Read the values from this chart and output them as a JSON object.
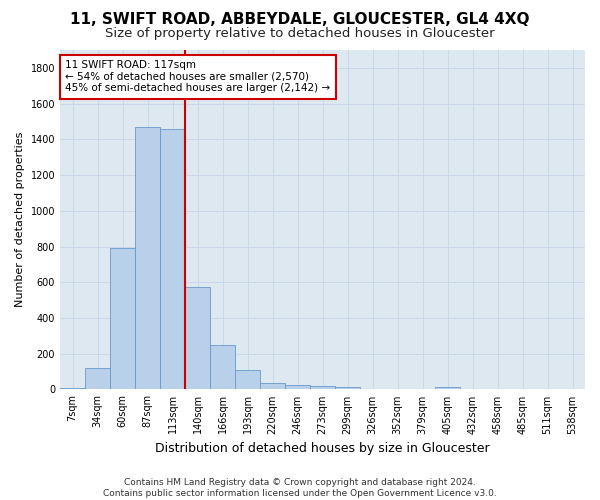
{
  "title": "11, SWIFT ROAD, ABBEYDALE, GLOUCESTER, GL4 4XQ",
  "subtitle": "Size of property relative to detached houses in Gloucester",
  "xlabel": "Distribution of detached houses by size in Gloucester",
  "ylabel": "Number of detached properties",
  "footer_line1": "Contains HM Land Registry data © Crown copyright and database right 2024.",
  "footer_line2": "Contains public sector information licensed under the Open Government Licence v3.0.",
  "bar_labels": [
    "7sqm",
    "34sqm",
    "60sqm",
    "87sqm",
    "113sqm",
    "140sqm",
    "166sqm",
    "193sqm",
    "220sqm",
    "246sqm",
    "273sqm",
    "299sqm",
    "326sqm",
    "352sqm",
    "379sqm",
    "405sqm",
    "432sqm",
    "458sqm",
    "485sqm",
    "511sqm",
    "538sqm"
  ],
  "bar_values": [
    8,
    120,
    790,
    1470,
    1460,
    575,
    250,
    110,
    35,
    25,
    20,
    15,
    3,
    0,
    0,
    12,
    0,
    0,
    0,
    0,
    0
  ],
  "bar_color": "#b8d0ea",
  "bar_edgecolor": "#6699cc",
  "vline_color": "#cc0000",
  "vline_pos": 4.5,
  "annotation_text": "11 SWIFT ROAD: 117sqm\n← 54% of detached houses are smaller (2,570)\n45% of semi-detached houses are larger (2,142) →",
  "annotation_box_facecolor": "#ffffff",
  "annotation_box_edgecolor": "#cc0000",
  "ylim": [
    0,
    1900
  ],
  "yticks": [
    0,
    200,
    400,
    600,
    800,
    1000,
    1200,
    1400,
    1600,
    1800
  ],
  "grid_color": "#c8d8e8",
  "background_color": "#dde8f0",
  "title_fontsize": 11,
  "subtitle_fontsize": 9.5,
  "ylabel_fontsize": 8,
  "xlabel_fontsize": 9,
  "tick_fontsize": 7,
  "footer_fontsize": 6.5,
  "annot_fontsize": 7.5
}
